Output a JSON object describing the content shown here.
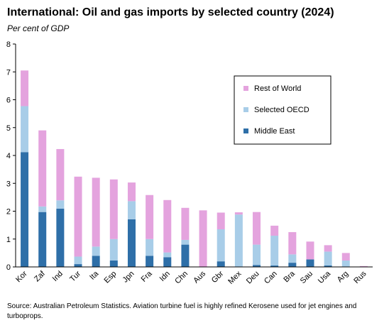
{
  "chart_data": {
    "type": "bar",
    "stacked": true,
    "title": "International: Oil and gas imports by selected country (2024)",
    "subtitle": "Per cent of GDP",
    "xlabel": "",
    "ylabel": "",
    "ylim": [
      0,
      8
    ],
    "yticks": [
      "0",
      "1",
      "2",
      "3",
      "4",
      "5",
      "6",
      "7",
      "8"
    ],
    "grid": false,
    "legend_position": "top-right",
    "categories": [
      "Kor",
      "Zaf",
      "Ind",
      "Tur",
      "Ita",
      "Esp",
      "Jpn",
      "Fra",
      "Idn",
      "Chn",
      "Aus",
      "Gbr",
      "Mex",
      "Deu",
      "Can",
      "Bra",
      "Sau",
      "Usa",
      "Arg",
      "Rus"
    ],
    "series": [
      {
        "name": "Middle East",
        "color": "#2e6fa8",
        "values": [
          4.12,
          1.97,
          2.09,
          0.1,
          0.4,
          0.23,
          1.71,
          0.4,
          0.35,
          0.8,
          0.0,
          0.2,
          0.0,
          0.07,
          0.05,
          0.15,
          0.27,
          0.05,
          0.0,
          0.0
        ]
      },
      {
        "name": "Selected OECD",
        "color": "#a8cde8",
        "values": [
          1.65,
          0.2,
          0.3,
          0.27,
          0.33,
          0.77,
          0.65,
          0.6,
          0.17,
          0.17,
          0.0,
          1.15,
          1.88,
          0.73,
          1.07,
          0.3,
          0.0,
          0.5,
          0.23,
          0.0
        ]
      },
      {
        "name": "Rest of World",
        "color": "#e4a3de",
        "values": [
          1.28,
          2.73,
          1.84,
          2.87,
          2.47,
          2.14,
          0.67,
          1.58,
          1.88,
          1.15,
          2.03,
          0.6,
          0.08,
          1.17,
          0.36,
          0.8,
          0.64,
          0.23,
          0.27,
          0.03
        ]
      }
    ],
    "legend": [
      "Rest of World",
      "Selected OECD",
      "Middle East"
    ]
  },
  "source": "Source: Australian Petroleum Statistics. Aviation turbine fuel is highly refined Kerosene used for jet engines and turboprops."
}
